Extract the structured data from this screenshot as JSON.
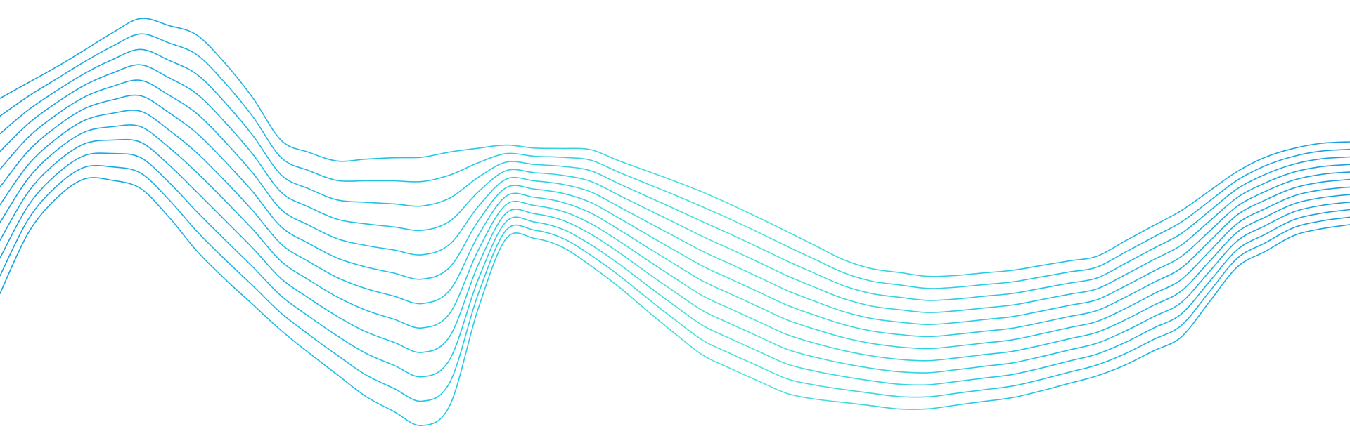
{
  "artwork": {
    "name": "wave-lines-illustration",
    "line_count": 12,
    "colors": {
      "background": "#ffffff",
      "line_primary": "#1a9fe0",
      "line_secondary": "#22c8e6",
      "line_accent": "#4fe6d6"
    }
  }
}
